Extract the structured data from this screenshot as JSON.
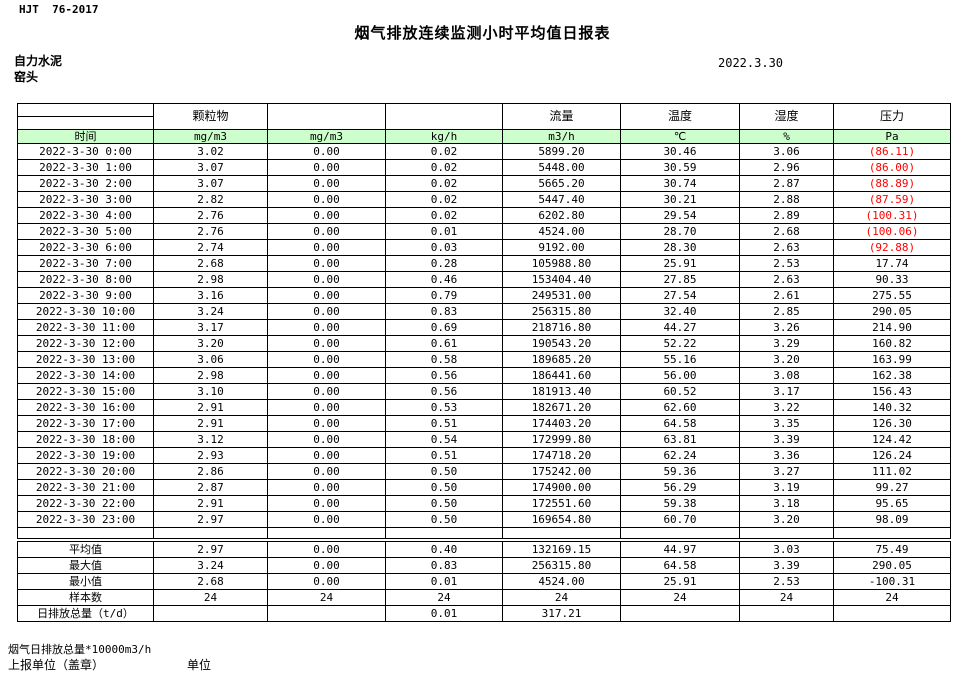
{
  "header": {
    "standard": "HJT  76-2017",
    "title": "烟气排放连续监测小时平均值日报表",
    "company": "自力水泥",
    "point": "窑头",
    "date": "2022.3.30"
  },
  "colors": {
    "header_green": "#ccffcc",
    "negative_red": "#ff0000"
  },
  "table": {
    "group_headers": [
      "",
      "颗粒物",
      "",
      "",
      "流量",
      "温度",
      "湿度",
      "压力"
    ],
    "unit_row": [
      "时间",
      "mg/m3",
      "mg/m3",
      "kg/h",
      "m3/h",
      "℃",
      "%",
      "Pa"
    ],
    "rows": [
      {
        "time": "2022-3-30 0:00",
        "values": [
          "3.02",
          "0.00",
          "0.02",
          "5899.20",
          "30.46",
          "3.06",
          "(86.11)"
        ]
      },
      {
        "time": "2022-3-30 1:00",
        "values": [
          "3.07",
          "0.00",
          "0.02",
          "5448.00",
          "30.59",
          "2.96",
          "(86.00)"
        ]
      },
      {
        "time": "2022-3-30 2:00",
        "values": [
          "3.07",
          "0.00",
          "0.02",
          "5665.20",
          "30.74",
          "2.87",
          "(88.89)"
        ]
      },
      {
        "time": "2022-3-30 3:00",
        "values": [
          "2.82",
          "0.00",
          "0.02",
          "5447.40",
          "30.21",
          "2.88",
          "(87.59)"
        ]
      },
      {
        "time": "2022-3-30 4:00",
        "values": [
          "2.76",
          "0.00",
          "0.02",
          "6202.80",
          "29.54",
          "2.89",
          "(100.31)"
        ]
      },
      {
        "time": "2022-3-30 5:00",
        "values": [
          "2.76",
          "0.00",
          "0.01",
          "4524.00",
          "28.70",
          "2.68",
          "(100.06)"
        ]
      },
      {
        "time": "2022-3-30 6:00",
        "values": [
          "2.74",
          "0.00",
          "0.03",
          "9192.00",
          "28.30",
          "2.63",
          "(92.88)"
        ]
      },
      {
        "time": "2022-3-30 7:00",
        "values": [
          "2.68",
          "0.00",
          "0.28",
          "105988.80",
          "25.91",
          "2.53",
          "17.74"
        ]
      },
      {
        "time": "2022-3-30 8:00",
        "values": [
          "2.98",
          "0.00",
          "0.46",
          "153404.40",
          "27.85",
          "2.63",
          "90.33"
        ]
      },
      {
        "time": "2022-3-30 9:00",
        "values": [
          "3.16",
          "0.00",
          "0.79",
          "249531.00",
          "27.54",
          "2.61",
          "275.55"
        ]
      },
      {
        "time": "2022-3-30 10:00",
        "values": [
          "3.24",
          "0.00",
          "0.83",
          "256315.80",
          "32.40",
          "2.85",
          "290.05"
        ]
      },
      {
        "time": "2022-3-30 11:00",
        "values": [
          "3.17",
          "0.00",
          "0.69",
          "218716.80",
          "44.27",
          "3.26",
          "214.90"
        ]
      },
      {
        "time": "2022-3-30 12:00",
        "values": [
          "3.20",
          "0.00",
          "0.61",
          "190543.20",
          "52.22",
          "3.29",
          "160.82"
        ]
      },
      {
        "time": "2022-3-30 13:00",
        "values": [
          "3.06",
          "0.00",
          "0.58",
          "189685.20",
          "55.16",
          "3.20",
          "163.99"
        ]
      },
      {
        "time": "2022-3-30 14:00",
        "values": [
          "2.98",
          "0.00",
          "0.56",
          "186441.60",
          "56.00",
          "3.08",
          "162.38"
        ]
      },
      {
        "time": "2022-3-30 15:00",
        "values": [
          "3.10",
          "0.00",
          "0.56",
          "181913.40",
          "60.52",
          "3.17",
          "156.43"
        ]
      },
      {
        "time": "2022-3-30 16:00",
        "values": [
          "2.91",
          "0.00",
          "0.53",
          "182671.20",
          "62.60",
          "3.22",
          "140.32"
        ]
      },
      {
        "time": "2022-3-30 17:00",
        "values": [
          "2.91",
          "0.00",
          "0.51",
          "174403.20",
          "64.58",
          "3.35",
          "126.30"
        ]
      },
      {
        "time": "2022-3-30 18:00",
        "values": [
          "3.12",
          "0.00",
          "0.54",
          "172999.80",
          "63.81",
          "3.39",
          "124.42"
        ]
      },
      {
        "time": "2022-3-30 19:00",
        "values": [
          "2.93",
          "0.00",
          "0.51",
          "174718.20",
          "62.24",
          "3.36",
          "126.24"
        ]
      },
      {
        "time": "2022-3-30 20:00",
        "values": [
          "2.86",
          "0.00",
          "0.50",
          "175242.00",
          "59.36",
          "3.27",
          "111.02"
        ]
      },
      {
        "time": "2022-3-30 21:00",
        "values": [
          "2.87",
          "0.00",
          "0.50",
          "174900.00",
          "56.29",
          "3.19",
          "99.27"
        ]
      },
      {
        "time": "2022-3-30 22:00",
        "values": [
          "2.91",
          "0.00",
          "0.50",
          "172551.60",
          "59.38",
          "3.18",
          "95.65"
        ]
      },
      {
        "time": "2022-3-30 23:00",
        "values": [
          "2.97",
          "0.00",
          "0.50",
          "169654.80",
          "60.70",
          "3.20",
          "98.09"
        ]
      }
    ],
    "summary": [
      {
        "label": "平均值",
        "values": [
          "2.97",
          "0.00",
          "0.40",
          "132169.15",
          "44.97",
          "3.03",
          "75.49"
        ]
      },
      {
        "label": "最大值",
        "values": [
          "3.24",
          "0.00",
          "0.83",
          "256315.80",
          "64.58",
          "3.39",
          "290.05"
        ]
      },
      {
        "label": "最小值",
        "values": [
          "2.68",
          "0.00",
          "0.01",
          "4524.00",
          "25.91",
          "2.53",
          "-100.31"
        ]
      },
      {
        "label": "样本数",
        "values": [
          "24",
          "24",
          "24",
          "24",
          "24",
          "24",
          "24"
        ]
      },
      {
        "label": "日排放总量（t/d）",
        "values": [
          "",
          "",
          "0.01",
          "317.21",
          "",
          "",
          ""
        ]
      }
    ]
  },
  "footer": {
    "total_note": "烟气日排放总量*10000m3/h",
    "report_unit_label": "上报单位（盖章）",
    "unit_label": "单位"
  }
}
